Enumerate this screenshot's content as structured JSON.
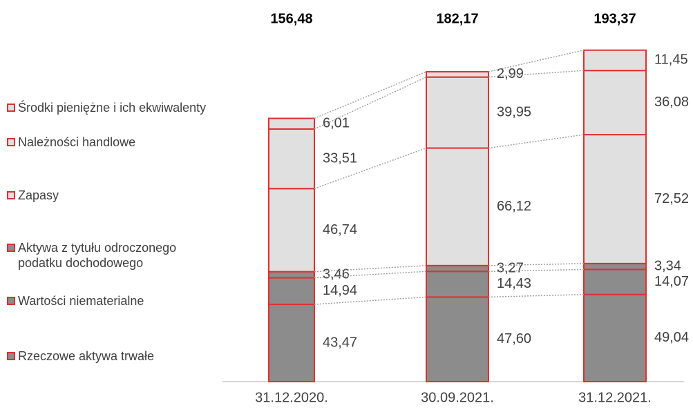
{
  "chart_data": {
    "type": "stacked-bar",
    "categories": [
      "31.12.2020.",
      "30.09.2021.",
      "31.12.2021."
    ],
    "totals": {
      "values": [
        156.48,
        182.17,
        193.37
      ],
      "value_labels": [
        "156,48",
        "182,17",
        "193,37"
      ]
    },
    "stroke_color": "#e03030",
    "series": [
      {
        "name": "Rzeczowe aktywa trwałe",
        "color": "#8c8c8c",
        "values": [
          43.47,
          47.6,
          49.04
        ],
        "value_labels": [
          "43,47",
          "47,60",
          "49,04"
        ]
      },
      {
        "name": "Wartości niematerialne",
        "color": "#8c8c8c",
        "values": [
          14.94,
          14.43,
          14.07
        ],
        "value_labels": [
          "14,94",
          "14,43",
          "14,07"
        ]
      },
      {
        "name": "Aktywa z tytułu odroczonego podatku dochodowego",
        "color": "#8c8c8c",
        "values": [
          3.46,
          3.27,
          3.34
        ],
        "value_labels": [
          "3,46",
          "3,27",
          "3,34"
        ]
      },
      {
        "name": "Zapasy",
        "color": "#e0e0e0",
        "values": [
          46.74,
          66.12,
          72.52
        ],
        "value_labels": [
          "46,74",
          "66,12",
          "72,52"
        ]
      },
      {
        "name": "Należności handlowe",
        "color": "#e0e0e0",
        "values": [
          33.51,
          39.95,
          36.08
        ],
        "value_labels": [
          "33,51",
          "39,95",
          "36,08"
        ]
      },
      {
        "name": "Środki pieniężne i ich ekwiwalenty",
        "color": "#e0e0e0",
        "values": [
          6.01,
          2.99,
          11.45
        ],
        "value_labels": [
          "6,01",
          "2,99",
          "11,45"
        ]
      }
    ]
  }
}
